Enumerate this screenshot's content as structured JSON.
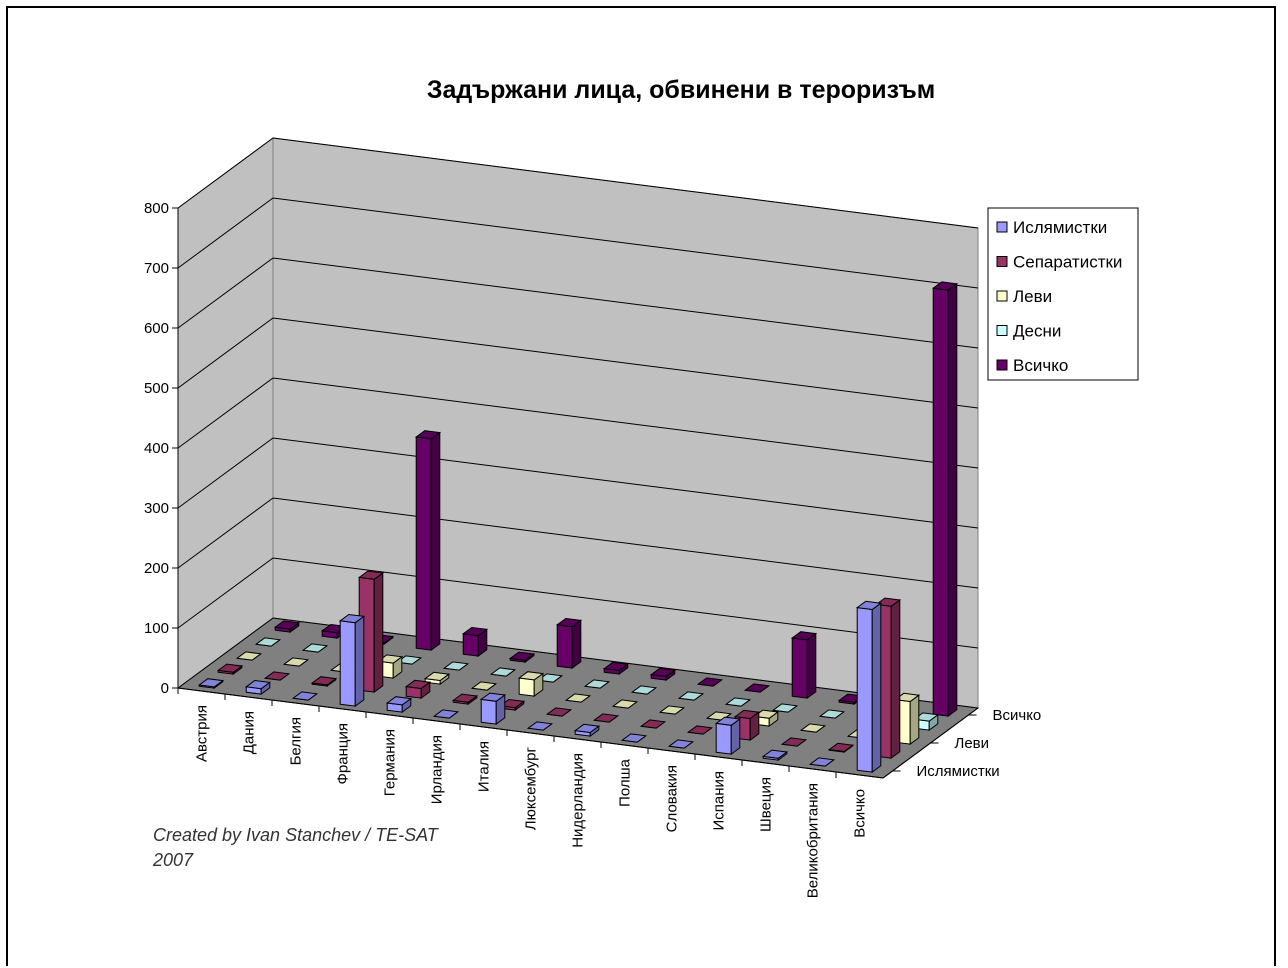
{
  "chart_data": {
    "type": "bar",
    "subtype": "3d-clustered-depth",
    "title": "Задържани лица, обвинени в тероризъм",
    "categories": [
      "Австрия",
      "Дания",
      "Белгия",
      "Франция",
      "Германия",
      "Ирландия",
      "Италия",
      "Люксембург",
      "Нидерландия",
      "Полша",
      "Словакия",
      "Испания",
      "Швеция",
      "Великобритания",
      "Всичко"
    ],
    "series": [
      {
        "name": "Ислямистки",
        "color": "#9999ff",
        "values": [
          2,
          9,
          0,
          139,
          12,
          0,
          38,
          0,
          6,
          0,
          0,
          48,
          3,
          0,
          271
        ]
      },
      {
        "name": "Сепаратистки",
        "color": "#993366",
        "values": [
          3,
          0,
          2,
          188,
          16,
          3,
          4,
          0,
          0,
          0,
          0,
          36,
          0,
          1,
          253
        ]
      },
      {
        "name": "Леви",
        "color": "#ffffcc",
        "values": [
          0,
          0,
          0,
          25,
          6,
          0,
          27,
          0,
          0,
          0,
          0,
          13,
          0,
          0,
          71
        ]
      },
      {
        "name": "Десни",
        "color": "#ccffff",
        "values": [
          0,
          0,
          0,
          0,
          0,
          0,
          0,
          0,
          0,
          0,
          0,
          0,
          0,
          0,
          15
        ]
      },
      {
        "name": "Всичко",
        "color": "#660066",
        "values": [
          5,
          9,
          2,
          352,
          34,
          3,
          69,
          6,
          6,
          0,
          0,
          97,
          3,
          1,
          710
        ]
      }
    ],
    "depth_axis_labels": [
      "Всичко",
      "Леви",
      "Ислямистки"
    ],
    "ylim": [
      0,
      800
    ],
    "yticks": [
      "0",
      "100",
      "200",
      "300",
      "400",
      "500",
      "600",
      "700",
      "800"
    ],
    "grid": true,
    "legend": "right",
    "legend_entries": [
      "Ислямистки",
      "Сепаратистки",
      "Леви",
      "Десни",
      "Всичко"
    ]
  },
  "credit": {
    "line1": "Created by Ivan Stanchev / TE-SAT",
    "line2": "2007"
  }
}
